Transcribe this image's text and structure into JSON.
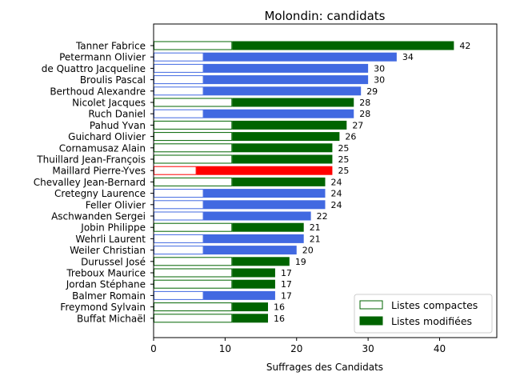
{
  "chart_data": {
    "type": "bar",
    "orientation": "horizontal",
    "title": "Molondin: candidats",
    "xlabel": "Suffrages des Candidats",
    "xlim": [
      0,
      48
    ],
    "xticks": [
      0,
      10,
      20,
      30,
      40
    ],
    "legend": {
      "placement": "bottom-right",
      "entries": [
        {
          "label": "Listes compactes",
          "style": "outline",
          "color": "#006400"
        },
        {
          "label": "Listes modifiées",
          "style": "filled",
          "color": "#006400"
        }
      ]
    },
    "candidates": [
      {
        "name": "Tanner Fabrice",
        "total": 42,
        "compact": 11,
        "color": "#006400"
      },
      {
        "name": "Petermann Olivier",
        "total": 34,
        "compact": 7,
        "color": "#4169e1"
      },
      {
        "name": "de Quattro Jacqueline",
        "total": 30,
        "compact": 7,
        "color": "#4169e1"
      },
      {
        "name": "Broulis Pascal",
        "total": 30,
        "compact": 7,
        "color": "#4169e1"
      },
      {
        "name": "Berthoud Alexandre",
        "total": 29,
        "compact": 7,
        "color": "#4169e1"
      },
      {
        "name": "Nicolet Jacques",
        "total": 28,
        "compact": 11,
        "color": "#006400"
      },
      {
        "name": "Ruch Daniel",
        "total": 28,
        "compact": 7,
        "color": "#4169e1"
      },
      {
        "name": "Pahud Yvan",
        "total": 27,
        "compact": 11,
        "color": "#006400"
      },
      {
        "name": "Guichard Olivier",
        "total": 26,
        "compact": 11,
        "color": "#006400"
      },
      {
        "name": "Cornamusaz Alain",
        "total": 25,
        "compact": 11,
        "color": "#006400"
      },
      {
        "name": "Thuillard Jean-François",
        "total": 25,
        "compact": 11,
        "color": "#006400"
      },
      {
        "name": "Maillard Pierre-Yves",
        "total": 25,
        "compact": 6,
        "color": "#ff0000"
      },
      {
        "name": "Chevalley Jean-Bernard",
        "total": 24,
        "compact": 11,
        "color": "#006400"
      },
      {
        "name": "Cretegny Laurence",
        "total": 24,
        "compact": 7,
        "color": "#4169e1"
      },
      {
        "name": "Feller Olivier",
        "total": 24,
        "compact": 7,
        "color": "#4169e1"
      },
      {
        "name": "Aschwanden Sergei",
        "total": 22,
        "compact": 7,
        "color": "#4169e1"
      },
      {
        "name": "Jobin Philippe",
        "total": 21,
        "compact": 11,
        "color": "#006400"
      },
      {
        "name": "Wehrli Laurent",
        "total": 21,
        "compact": 7,
        "color": "#4169e1"
      },
      {
        "name": "Weiler Christian",
        "total": 20,
        "compact": 7,
        "color": "#4169e1"
      },
      {
        "name": "Durussel José",
        "total": 19,
        "compact": 11,
        "color": "#006400"
      },
      {
        "name": "Treboux Maurice",
        "total": 17,
        "compact": 11,
        "color": "#006400"
      },
      {
        "name": "Jordan Stéphane",
        "total": 17,
        "compact": 11,
        "color": "#006400"
      },
      {
        "name": "Balmer Romain",
        "total": 17,
        "compact": 7,
        "color": "#4169e1"
      },
      {
        "name": "Freymond Sylvain",
        "total": 16,
        "compact": 11,
        "color": "#006400"
      },
      {
        "name": "Buffat Michaël",
        "total": 16,
        "compact": 11,
        "color": "#006400"
      }
    ]
  }
}
